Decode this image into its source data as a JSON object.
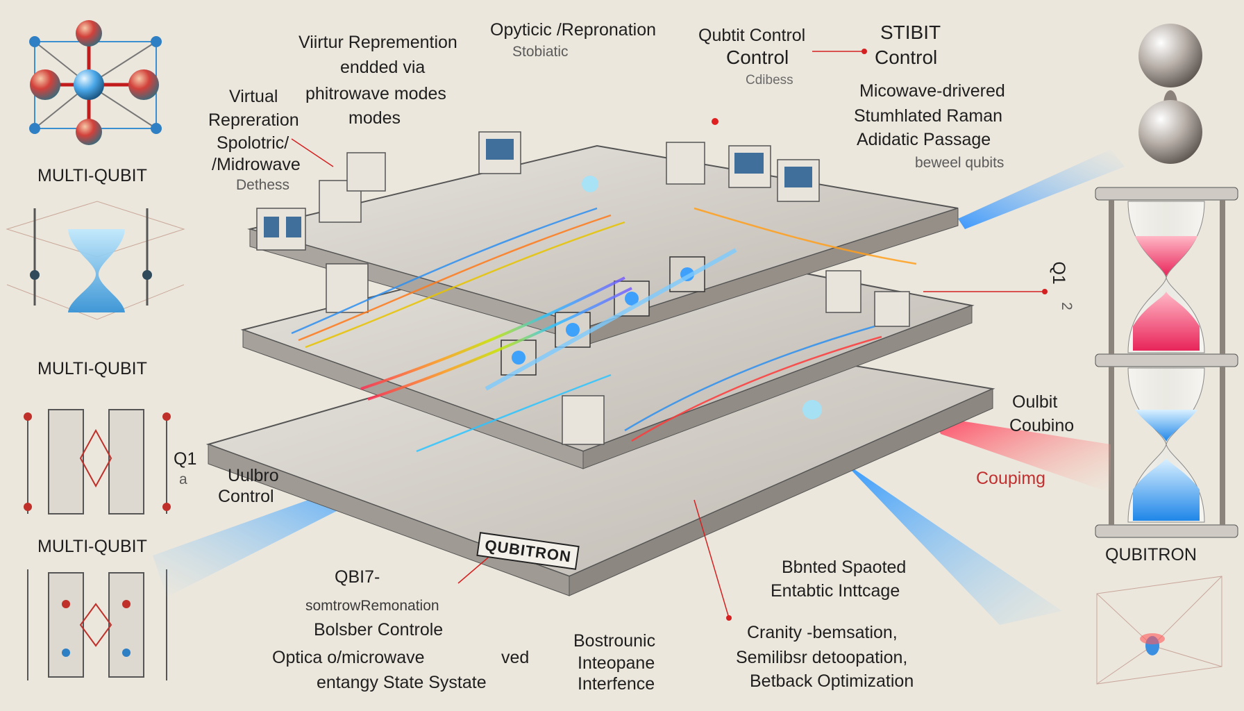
{
  "labels": {
    "top_virtual_1": "Viirtur Repremention",
    "top_virtual_2": "endded via",
    "top_virtual_3": "phitrowave modes",
    "top_virtual_4": "modes",
    "left_virtual_1": "Virtual",
    "left_virtual_2": "Repreration",
    "left_virtual_3": "Spolotric/",
    "left_virtual_4": "/Midrowave",
    "left_virtual_5": "Dethess",
    "optic_1": "Opyticic /Repronation",
    "optic_2": "Stobiatic",
    "qubit_control_1": "Qubtit Control",
    "qubit_control_2": "Control",
    "qubit_control_3": "Cdibess",
    "stibit_1": "STIBIT",
    "stibit_2": "Control",
    "raman_1": "Micowave-drivered",
    "raman_2": "Stumhlated Raman",
    "raman_3": "Adidatic Passage",
    "raman_4": "beweel qubits",
    "multi_qubit_1": "MULTI-QUBIT",
    "multi_qubit_2": "MULTI-QUBIT",
    "multi_qubit_3": "MULTI-QUBIT",
    "q1_left": "Q1",
    "q1_left_sub": "a",
    "q1_right": "Q1",
    "q1_right_sub": "2",
    "ulbr_control_1": "Uulbro",
    "ulbr_control_2": "Control",
    "oulbit_coupling_1": "Oulbit",
    "oulbit_coupling_2": "Coubino",
    "coupling": "Coupimg",
    "qubitron_right": "QUBITRON",
    "qubitron_badge": "QUBITRON",
    "qbi7_1": "QBI7-",
    "qbi7_2": "somtrowRemonation",
    "qbi7_3": "Bolsber Controle",
    "optica_1": "Optica o/microwave",
    "optica_2": "ved",
    "optica_3": "entangy State Systate",
    "bostronic_1": "Bostrounic",
    "bostronic_2": "Inteopane",
    "bostronic_3": "Interfence",
    "bbranted_1": "Bbnted Spaoted",
    "bbranted_2": "Entabtic Inttcage",
    "cranity_1": "Cranity -bemsation,",
    "cranity_2": "Semilibsr detoopation,",
    "cranity_3": "Betback  Optimization"
  },
  "colors": {
    "background": "#ece7dc",
    "beam_blue": "#3aa6ff",
    "beam_red": "#ff4a4a",
    "platform": "#d9d6d0",
    "ink": "#1e1e1e"
  }
}
